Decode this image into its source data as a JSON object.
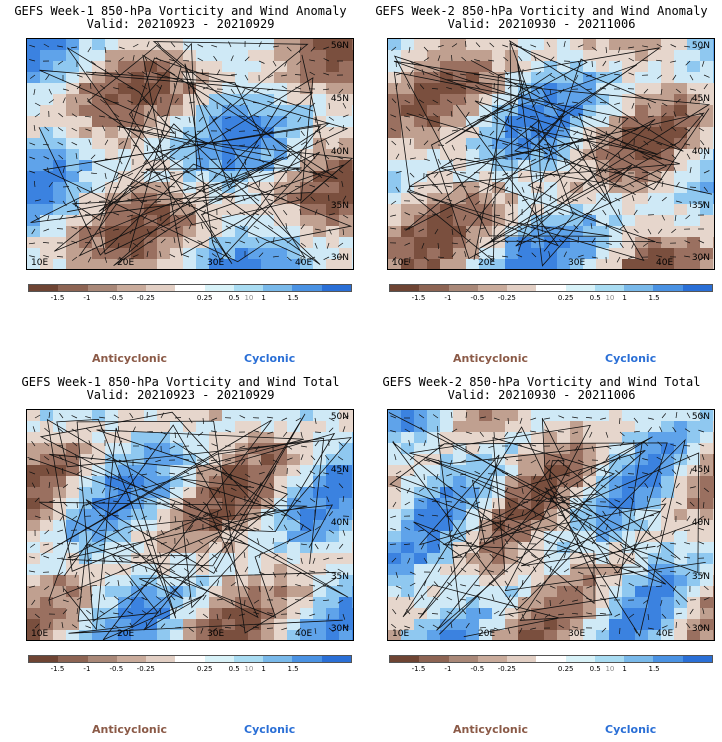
{
  "panels": [
    {
      "title": "GEFS Week-1 850-hPa Vorticity and Wind Anomaly",
      "valid": "Valid: 20210923 - 20210929"
    },
    {
      "title": "GEFS Week-2 850-hPa Vorticity and Wind Anomaly",
      "valid": "Valid: 20210930 - 20211006"
    },
    {
      "title": "GEFS Week-1 850-hPa Vorticity and Wind Total",
      "valid": "Valid: 20210923 - 20210929"
    },
    {
      "title": "GEFS Week-2 850-hPa Vorticity and Wind Total",
      "valid": "Valid: 20210930 - 20211006"
    }
  ],
  "lat_labels": [
    "50N",
    "45N",
    "40N",
    "35N",
    "30N"
  ],
  "lon_labels": [
    "10E",
    "20E",
    "30E",
    "40E"
  ],
  "colorbar": {
    "labels": [
      "-1.5",
      "-1",
      "-0.5",
      "-0.25",
      "0.25",
      "0.5",
      "1",
      "1.5"
    ],
    "scale_note": "10",
    "colors": [
      "#6e4433",
      "#8d6453",
      "#a98878",
      "#c9ab9b",
      "#e2cfc4",
      "#ffffff",
      "#d8f2f8",
      "#a9dcf2",
      "#79b9ea",
      "#4a92e3",
      "#2a6fd6"
    ]
  },
  "legend": {
    "anticyclonic": "Anticyclonic",
    "cyclonic": "Cyclonic"
  },
  "colors": {
    "anticyclonic": "#8b5a47",
    "cyclonic": "#2a6fd6"
  }
}
